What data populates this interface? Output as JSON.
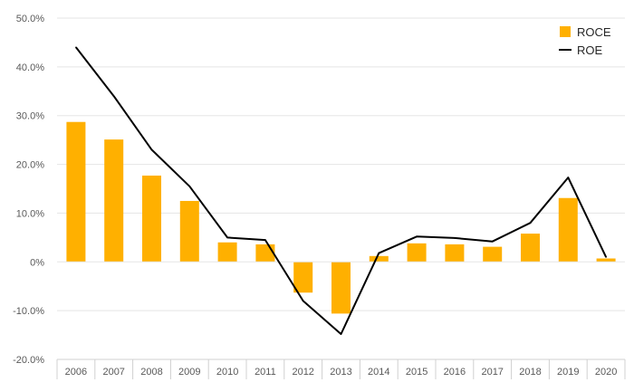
{
  "colors": {
    "roce_bar": "#FFB000",
    "roe_line": "#000000",
    "grid": "#E5E5E5",
    "axis": "#D0D0D0",
    "tick_text": "#595959"
  },
  "chart_data": {
    "type": "bar",
    "title": "",
    "xlabel": "",
    "ylabel": "",
    "categories": [
      "2006",
      "2007",
      "2008",
      "2009",
      "2010",
      "2011",
      "2012",
      "2013",
      "2014",
      "2015",
      "2016",
      "2017",
      "2018",
      "2019",
      "2020"
    ],
    "ylim": [
      -20,
      50
    ],
    "yticks": [
      50,
      40,
      30,
      20,
      10,
      0,
      -10,
      -20
    ],
    "ytick_labels": [
      "50.0%",
      "40.0%",
      "30.0%",
      "20.0%",
      "10.0%",
      "0%",
      "-10.0%",
      "-20.0%"
    ],
    "grid": true,
    "legend_position": "top-right",
    "series": [
      {
        "name": "ROCE",
        "kind": "bar",
        "values": [
          28.7,
          25.1,
          17.7,
          12.5,
          4.0,
          3.6,
          -6.3,
          -10.6,
          1.2,
          3.8,
          3.6,
          3.1,
          5.8,
          13.1,
          0.7
        ]
      },
      {
        "name": "ROE",
        "kind": "line",
        "values": [
          44.0,
          34.0,
          23.0,
          15.5,
          5.0,
          4.5,
          -8.0,
          -14.8,
          1.8,
          5.2,
          4.9,
          4.2,
          8.0,
          17.3,
          1.0
        ]
      }
    ]
  }
}
